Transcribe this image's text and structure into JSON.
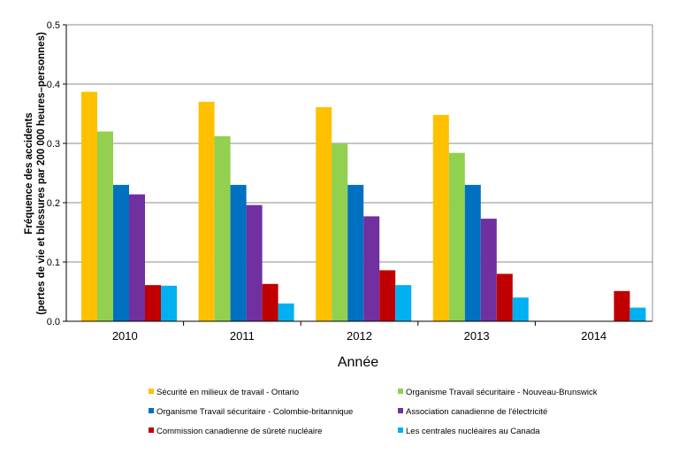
{
  "chart_data": {
    "type": "bar",
    "categories": [
      "2010",
      "2011",
      "2012",
      "2013",
      "2014"
    ],
    "xlabel": "Année",
    "ylabel_line1": "Fréquence des accidents",
    "ylabel_line2": "(pertes de vie et blessures par 200 000 heures–personnes)",
    "ylim": [
      0,
      0.5
    ],
    "yticks": [
      "0.0",
      "0.1",
      "0.2",
      "0.3",
      "0.4",
      "0.5"
    ],
    "ytick_values": [
      0,
      0.1,
      0.2,
      0.3,
      0.4,
      0.5
    ],
    "grid": true,
    "legend_position": "bottom",
    "series": [
      {
        "name": "Sécurité en milieux de travail - Ontario",
        "color": "#FFC000",
        "values": [
          0.387,
          0.37,
          0.361,
          0.348,
          null
        ]
      },
      {
        "name": "Organisme Travail sécuritaire - Nouveau-Brunswick",
        "color": "#92D050",
        "values": [
          0.32,
          0.312,
          0.3,
          0.284,
          null
        ]
      },
      {
        "name": "Organisme Travail sécuritaire - Colombie-britannique",
        "color": "#0070C0",
        "values": [
          0.23,
          0.23,
          0.23,
          0.23,
          null
        ]
      },
      {
        "name": "Association canadienne de l'électricité",
        "color": "#7030A0",
        "values": [
          0.214,
          0.196,
          0.177,
          0.173,
          null
        ]
      },
      {
        "name": "Commission canadienne de  sûreté nucléaire",
        "color": "#C00000",
        "values": [
          0.061,
          0.063,
          0.086,
          0.08,
          0.051
        ]
      },
      {
        "name": "Les centrales nucléaires au Canada",
        "color": "#00B0F0",
        "values": [
          0.06,
          0.03,
          0.061,
          0.04,
          0.023
        ]
      }
    ]
  }
}
